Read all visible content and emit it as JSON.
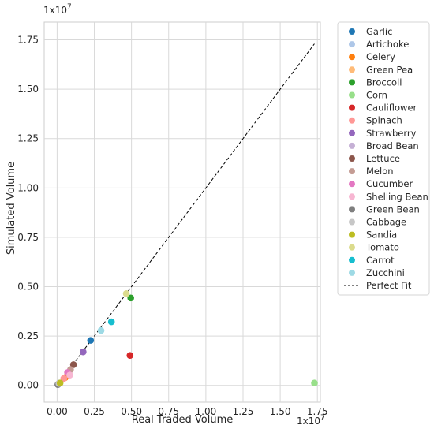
{
  "chart_data": {
    "type": "scatter",
    "title": "",
    "xlabel": "Real Traded Volume",
    "ylabel": "Simulated Volume",
    "x_offset_label": "1x10",
    "x_offset_exp": "7",
    "y_offset_label": "1x10",
    "y_offset_exp": "7",
    "xlim": [
      -0.087,
      1.77
    ],
    "ylim": [
      -0.085,
      1.84
    ],
    "xticks": [
      0.0,
      0.25,
      0.5,
      0.75,
      1.0,
      1.25,
      1.5,
      1.75
    ],
    "xtick_labels": [
      "0.00",
      "0.25",
      "0.50",
      "0.75",
      "1.00",
      "1.25",
      "1.50",
      "1.75"
    ],
    "yticks": [
      0.0,
      0.25,
      0.5,
      0.75,
      1.0,
      1.25,
      1.5,
      1.75
    ],
    "ytick_labels": [
      "0.00",
      "0.25",
      "0.50",
      "0.75",
      "1.00",
      "1.25",
      "1.50",
      "1.75"
    ],
    "grid": true,
    "legend_position": "outside-right",
    "series": [
      {
        "name": "Garlic",
        "color": "#1f77b4",
        "x": [
          0.225
        ],
        "y": [
          0.228
        ]
      },
      {
        "name": "Artichoke",
        "color": "#aec7e8",
        "x": [
          0.015
        ],
        "y": [
          0.012
        ]
      },
      {
        "name": "Celery",
        "color": "#ff7f0e",
        "x": [
          0.055
        ],
        "y": [
          0.04
        ]
      },
      {
        "name": "Green Pea",
        "color": "#ffbb78",
        "x": [
          0.01
        ],
        "y": [
          0.008
        ]
      },
      {
        "name": "Broccoli",
        "color": "#2ca02c",
        "x": [
          0.495
        ],
        "y": [
          0.443
        ]
      },
      {
        "name": "Corn",
        "color": "#98df8a",
        "x": [
          1.73
        ],
        "y": [
          0.012
        ]
      },
      {
        "name": "Cauliflower",
        "color": "#d62728",
        "x": [
          0.49
        ],
        "y": [
          0.152
        ]
      },
      {
        "name": "Spinach",
        "color": "#ff9896",
        "x": [
          0.045
        ],
        "y": [
          0.035
        ]
      },
      {
        "name": "Strawberry",
        "color": "#9467bd",
        "x": [
          0.175
        ],
        "y": [
          0.17
        ]
      },
      {
        "name": "Broad Bean",
        "color": "#c5b0d5",
        "x": [
          0.008
        ],
        "y": [
          0.006
        ]
      },
      {
        "name": "Lettuce",
        "color": "#8c564b",
        "x": [
          0.11
        ],
        "y": [
          0.105
        ]
      },
      {
        "name": "Melon",
        "color": "#c49c94",
        "x": [
          0.09
        ],
        "y": [
          0.08
        ]
      },
      {
        "name": "Cucumber",
        "color": "#e377c2",
        "x": [
          0.07
        ],
        "y": [
          0.065
        ]
      },
      {
        "name": "Shelling Bean",
        "color": "#f7b6d2",
        "x": [
          0.085
        ],
        "y": [
          0.052
        ]
      },
      {
        "name": "Green Bean",
        "color": "#7f7f7f",
        "x": [
          0.005
        ],
        "y": [
          0.004
        ]
      },
      {
        "name": "Cabbage",
        "color": "#c7c7c7",
        "x": [
          0.012
        ],
        "y": [
          0.01
        ]
      },
      {
        "name": "Sandia",
        "color": "#bcbd22",
        "x": [
          0.02
        ],
        "y": [
          0.012
        ]
      },
      {
        "name": "Tomato",
        "color": "#dbdb8d",
        "x": [
          0.465
        ],
        "y": [
          0.465
        ]
      },
      {
        "name": "Carrot",
        "color": "#17becf",
        "x": [
          0.365
        ],
        "y": [
          0.322
        ]
      },
      {
        "name": "Zucchini",
        "color": "#9edae5",
        "x": [
          0.295
        ],
        "y": [
          0.278
        ]
      }
    ],
    "reference_line": {
      "name": "Perfect Fit",
      "x": [
        0,
        1.73
      ],
      "y": [
        0,
        1.73
      ],
      "color": "#000000",
      "style": "dashed"
    }
  }
}
